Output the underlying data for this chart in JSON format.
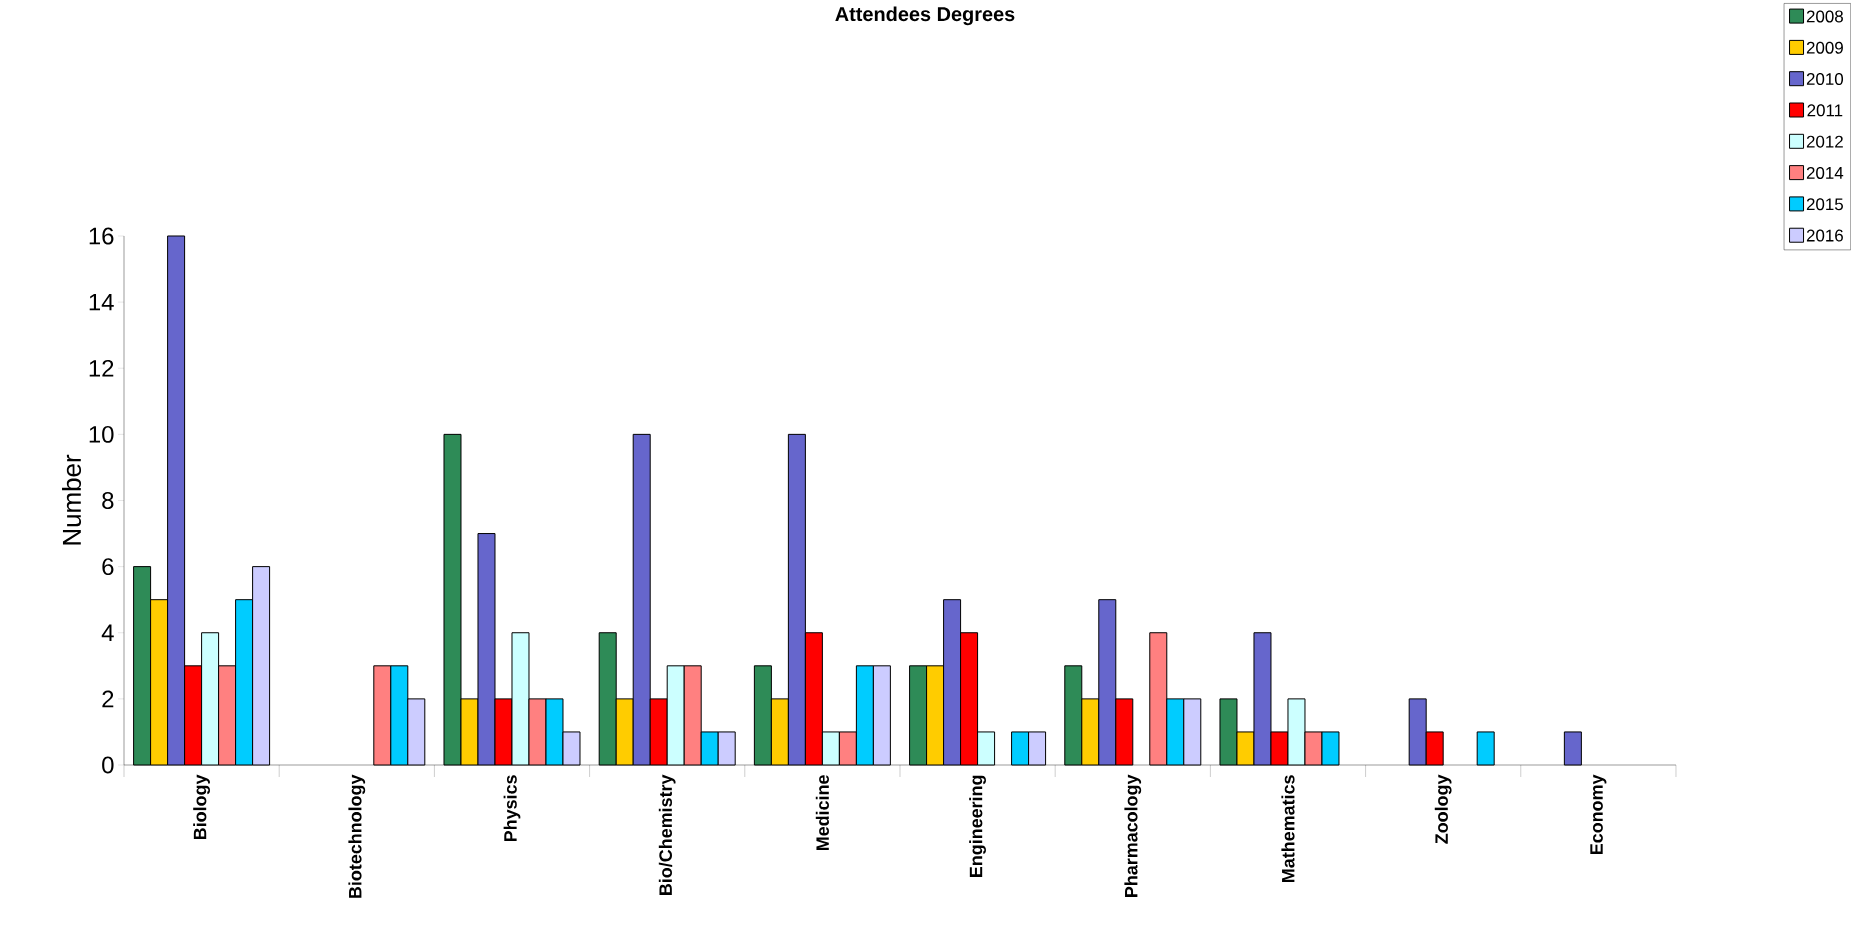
{
  "chart_data": {
    "type": "bar",
    "title": "Attendees Degrees",
    "ylabel": "Number",
    "categories": [
      "Biology",
      "Biotechnology",
      "Physics",
      "Bio/Chemistry",
      "Medicine",
      "Engineering",
      "Pharmacology",
      "Mathematics",
      "Zoology",
      "Economy"
    ],
    "series": [
      {
        "name": "2008",
        "color": "#2e8b57",
        "values": [
          6,
          null,
          10,
          4,
          3,
          3,
          3,
          2,
          null,
          null
        ]
      },
      {
        "name": "2009",
        "color": "#ffcc00",
        "values": [
          5,
          null,
          2,
          2,
          2,
          3,
          2,
          1,
          null,
          null
        ]
      },
      {
        "name": "2010",
        "color": "#6666cc",
        "values": [
          16,
          null,
          7,
          10,
          10,
          5,
          5,
          4,
          2,
          1
        ]
      },
      {
        "name": "2011",
        "color": "#ff0000",
        "values": [
          3,
          null,
          2,
          2,
          4,
          4,
          2,
          1,
          1,
          null
        ]
      },
      {
        "name": "2012",
        "color": "#ccffff",
        "values": [
          4,
          null,
          4,
          3,
          1,
          1,
          null,
          2,
          null,
          null
        ]
      },
      {
        "name": "2014",
        "color": "#ff8080",
        "values": [
          3,
          3,
          2,
          3,
          1,
          null,
          4,
          1,
          null,
          null
        ]
      },
      {
        "name": "2015",
        "color": "#00ccff",
        "values": [
          5,
          3,
          2,
          1,
          3,
          1,
          2,
          1,
          1,
          null
        ]
      },
      {
        "name": "2016",
        "color": "#ccccff",
        "values": [
          6,
          2,
          1,
          1,
          3,
          1,
          2,
          null,
          null,
          null
        ]
      }
    ],
    "ylim": [
      0,
      16
    ],
    "yticks": [
      0,
      2,
      4,
      6,
      8,
      10,
      12,
      14,
      16
    ],
    "grid": false,
    "legend": "top right"
  }
}
